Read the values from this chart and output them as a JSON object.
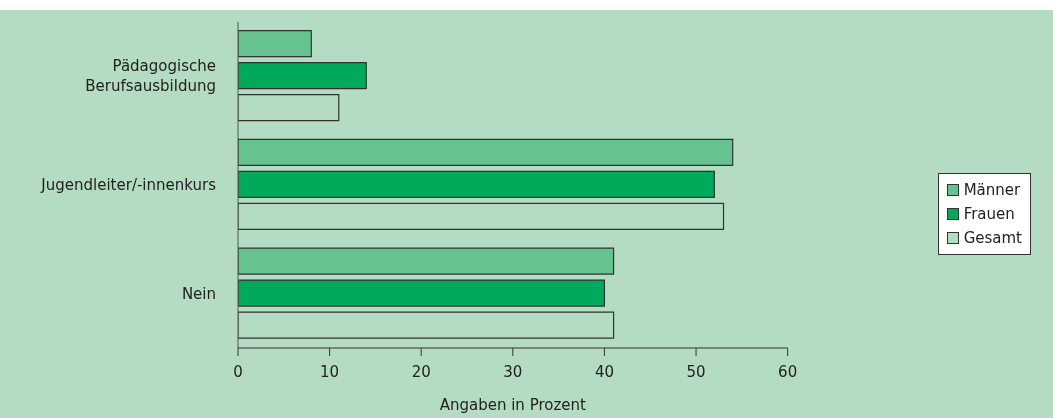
{
  "chart_data": {
    "type": "bar",
    "orientation": "horizontal",
    "xlabel": "Angaben in Prozent",
    "categories": [
      "Pädagogische Berufsausbildung",
      "Jugendleiter/-innenkurs",
      "Nein"
    ],
    "series": [
      {
        "name": "Männer",
        "color": "#66c28e",
        "values": [
          8,
          54,
          41
        ]
      },
      {
        "name": "Frauen",
        "color": "#00aa5a",
        "values": [
          14,
          52,
          40
        ]
      },
      {
        "name": "Gesamt",
        "color": "#b3dcc2",
        "values": [
          11,
          53,
          41
        ]
      }
    ],
    "xlim": [
      0,
      60
    ],
    "xticks": [
      0,
      10,
      20,
      30,
      40,
      50,
      60
    ],
    "grid": false,
    "legend": "right"
  }
}
